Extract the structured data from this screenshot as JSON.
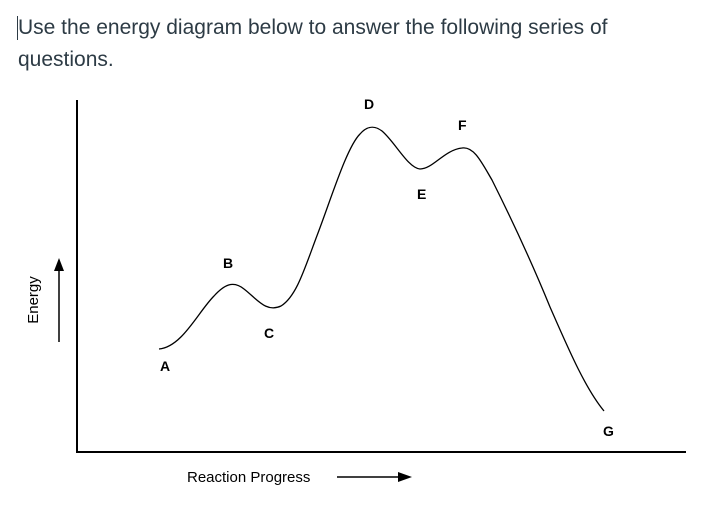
{
  "question": {
    "text": "Use the energy diagram below to answer the following series of questions."
  },
  "diagram": {
    "y_axis_label": "Energy",
    "x_axis_label": "Reaction Progress",
    "points": [
      {
        "id": "A",
        "label": "A"
      },
      {
        "id": "B",
        "label": "B"
      },
      {
        "id": "C",
        "label": "C"
      },
      {
        "id": "D",
        "label": "D"
      },
      {
        "id": "E",
        "label": "E"
      },
      {
        "id": "F",
        "label": "F"
      },
      {
        "id": "G",
        "label": "G"
      }
    ]
  }
}
